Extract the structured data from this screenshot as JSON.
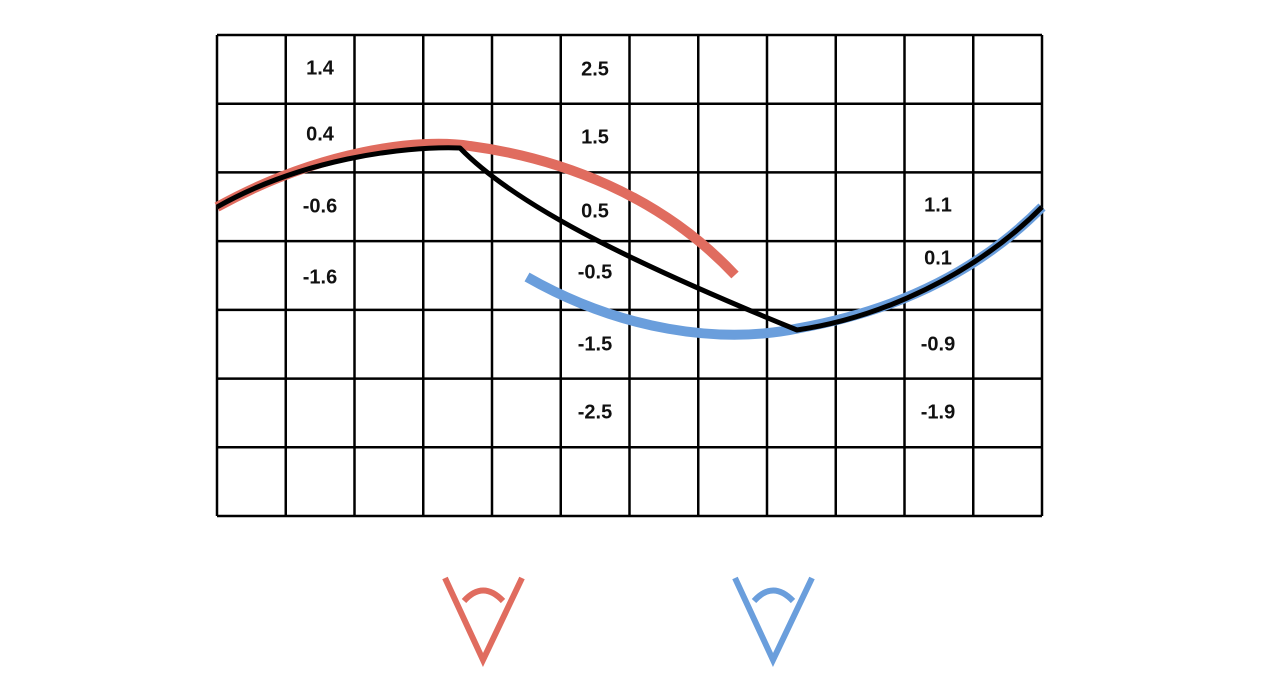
{
  "columns": {
    "left": [
      "1.4",
      "0.4",
      "-0.6",
      "-1.6"
    ],
    "middle": [
      "2.5",
      "1.5",
      "0.5",
      "-0.5",
      "-1.5",
      "-2.5"
    ],
    "right": [
      "1.1",
      "0.1",
      "-0.9",
      "-1.9"
    ]
  }
}
